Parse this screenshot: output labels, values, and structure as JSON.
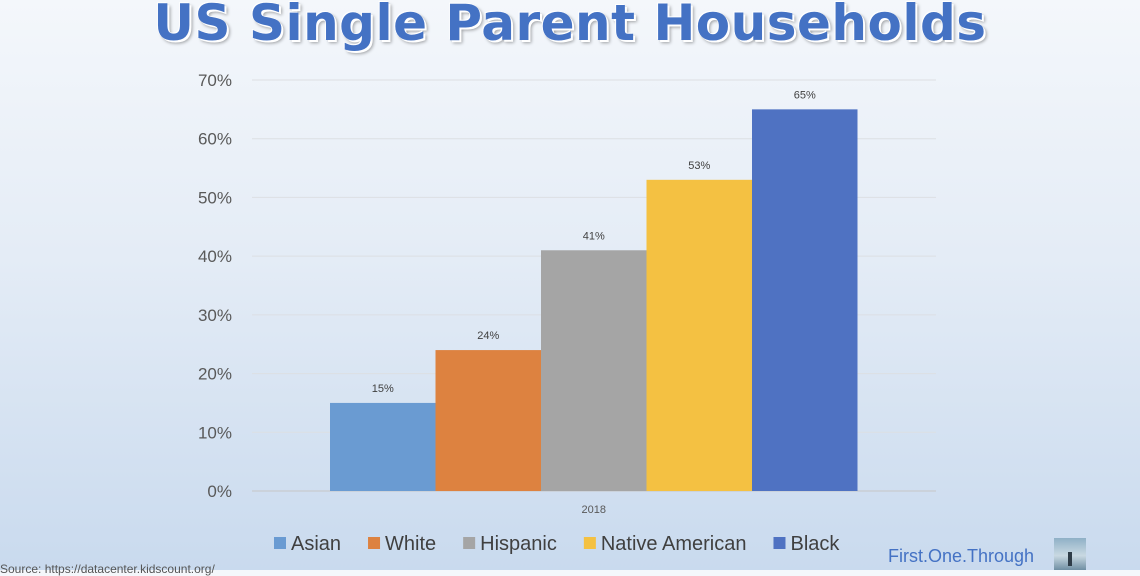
{
  "chart_data": {
    "type": "bar",
    "title": "US Single Parent Households",
    "categories": [
      "2018"
    ],
    "series": [
      {
        "name": "Asian",
        "values": [
          15
        ],
        "label": "15%",
        "color": "#6a9bd2"
      },
      {
        "name": "White",
        "values": [
          24
        ],
        "label": "24%",
        "color": "#dd8240"
      },
      {
        "name": "Hispanic",
        "values": [
          41
        ],
        "label": "41%",
        "color": "#a5a5a5"
      },
      {
        "name": "Native American",
        "values": [
          53
        ],
        "label": "53%",
        "color": "#f4c142"
      },
      {
        "name": "Black",
        "values": [
          65
        ],
        "label": "65%",
        "color": "#4f72c2"
      }
    ],
    "yticks": [
      "0%",
      "10%",
      "20%",
      "30%",
      "40%",
      "50%",
      "60%",
      "70%"
    ],
    "ylim": [
      0,
      70
    ],
    "xlabel": "",
    "ylabel": "",
    "grid": true,
    "legend": "bottom"
  },
  "brand": {
    "text": "First.One.Through"
  },
  "source": {
    "text": "Source: https://datacenter.kidscount.org/"
  }
}
